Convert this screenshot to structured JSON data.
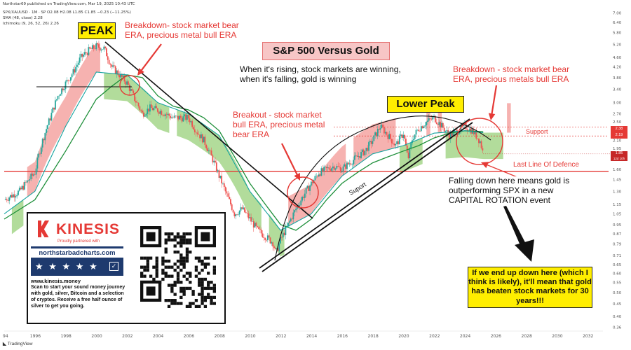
{
  "header": {
    "published_by": "Northstar69 published on TradingView.com, Mar 19, 2025 10:43 UTC",
    "symbol_line": "SPX/XAUUSD · 1M · SP  O2.08 H2.08 L1.85 C1.85 −0.23 (−11.25%)",
    "sma_line": "SMA (48, close)  2.28",
    "ichimoku_line": "Ichimoku (9, 26, 52, 26)  2.26"
  },
  "colors": {
    "price_up": "#26a69a",
    "price_down": "#ef5350",
    "sma": "#1e8f3a",
    "kijun": "#16a3a0",
    "cloud_green": "#a5d68a",
    "cloud_red": "#f4a5a2",
    "annotation_red": "#e53935",
    "highlight_yellow": "#ffee00"
  },
  "annotations": {
    "title": "S&P 500 Versus Gold",
    "peak": "PEAK",
    "lower_peak": "Lower Peak",
    "breakdown1": "Breakdown- stock market bear ERA, precious metal bull ERA",
    "rising_note": "When it's rising, stock markets are winning, when it's falling, gold is winning",
    "breakout": "Breakout - stock market bull ERA, precious metal bear ERA",
    "breakdown2": "Breakdown - stock market bear ERA, precious metals bull ERA",
    "support_label": "Support",
    "support_line_label": "Suport",
    "last_line": "Last Line Of Defence",
    "falling_note": "Falling down here means gold is outperforming SPX in a new CAPITAL ROTATION event",
    "end_note": "If we end up down here (which I think is likely), it'll mean that gold has beaten stock markets for 30 years!!!"
  },
  "ad": {
    "brand": "KINESIS",
    "partner": "Proudly partnered with",
    "site": "northstarbadcharts.com",
    "stars": "★ ★ ★ ★ ★",
    "url": "www.kinesis.money",
    "body": "Scan to start your sound money journey with gold, silver, Bitcoin and a selection of cryptos. Receive a free half ounce of silver to get you going."
  },
  "price_labels": {
    "p1": "2.38",
    "p2": "2.19",
    "p3": "1.85",
    "p3_sub": "12d 10h"
  },
  "footer": {
    "tv": "TradingView"
  },
  "chart_data": {
    "type": "line",
    "title": "S&P 500 Versus Gold",
    "y_scale": "log",
    "ylim": [
      0.35,
      7.2
    ],
    "xlim": [
      1994,
      2033
    ],
    "y_ticks": [
      7.0,
      6.4,
      5.8,
      5.2,
      4.6,
      4.2,
      3.8,
      3.4,
      3.0,
      2.7,
      2.5,
      2.3,
      2.1,
      1.95,
      1.8,
      1.6,
      1.45,
      1.3,
      1.15,
      1.05,
      0.95,
      0.87,
      0.79,
      0.71,
      0.65,
      0.6,
      0.55,
      0.5,
      0.45,
      0.4,
      0.36
    ],
    "x_ticks": [
      "94",
      "1996",
      "1998",
      "2000",
      "2002",
      "2004",
      "2006",
      "2008",
      "2010",
      "2012",
      "2014",
      "2016",
      "2018",
      "2020",
      "2022",
      "2024",
      "2026",
      "2028",
      "2030",
      "2032"
    ],
    "series": [
      {
        "type": "price",
        "x": [
          1994.0,
          1995.0,
          1996.0,
          1996.5,
          1997.0,
          1997.5,
          1998.0,
          1998.5,
          1999.0,
          1999.5,
          2000.0,
          2000.5,
          2001.0,
          2001.5,
          2002.0,
          2002.5,
          2003.0,
          2003.5,
          2004.0,
          2005.0,
          2006.0,
          2006.5,
          2007.0,
          2007.5,
          2008.0,
          2008.5,
          2009.0,
          2009.5,
          2010.0,
          2010.5,
          2011.0,
          2011.5,
          2011.7,
          2012.0,
          2012.5,
          2013.0,
          2013.5,
          2014.0,
          2014.5,
          2015.0,
          2015.5,
          2016.0,
          2016.5,
          2017.0,
          2017.5,
          2018.0,
          2018.5,
          2019.0,
          2019.5,
          2020.0,
          2020.3,
          2020.6,
          2021.0,
          2021.5,
          2022.0,
          2022.5,
          2023.0,
          2023.5,
          2024.0,
          2024.5,
          2025.0,
          2025.2
        ],
        "y": [
          1.2,
          1.3,
          1.55,
          2.1,
          2.6,
          3.2,
          3.6,
          4.0,
          4.6,
          4.9,
          5.1,
          5.0,
          4.2,
          3.9,
          3.6,
          3.1,
          2.7,
          2.85,
          2.8,
          2.6,
          2.6,
          2.3,
          2.1,
          1.8,
          1.5,
          1.25,
          1.05,
          1.1,
          1.0,
          0.9,
          0.85,
          0.8,
          0.72,
          0.82,
          0.95,
          1.1,
          1.25,
          1.4,
          1.55,
          1.6,
          1.65,
          1.6,
          1.7,
          1.8,
          1.9,
          2.1,
          2.4,
          2.2,
          2.0,
          2.25,
          1.75,
          2.15,
          2.35,
          2.5,
          2.6,
          2.4,
          2.2,
          2.3,
          2.4,
          2.3,
          2.08,
          1.85
        ]
      },
      {
        "name": "SMA (48, close)",
        "x": [
          1994.0,
          1996.0,
          1998.0,
          2000.0,
          2001.0,
          2002.0,
          2003.0,
          2004.0,
          2005.0,
          2006.0,
          2007.0,
          2008.0,
          2009.0,
          2010.0,
          2011.0,
          2012.0,
          2013.0,
          2014.0,
          2015.0,
          2016.0,
          2017.0,
          2018.0,
          2019.0,
          2020.0,
          2021.0,
          2022.0,
          2023.0,
          2024.0,
          2025.2
        ],
        "y": [
          1.0,
          1.2,
          1.9,
          3.1,
          3.5,
          3.9,
          3.8,
          3.2,
          2.9,
          2.8,
          2.6,
          2.3,
          1.8,
          1.4,
          1.15,
          0.95,
          0.9,
          1.0,
          1.2,
          1.4,
          1.55,
          1.7,
          1.8,
          1.9,
          2.0,
          2.15,
          2.25,
          2.3,
          2.28
        ]
      },
      {
        "name": "Ichimoku (9, 26, 52, 26)",
        "x": [
          1994.0,
          1996.0,
          1998.0,
          2000.0,
          2002.0,
          2004.0,
          2006.0,
          2008.0,
          2010.0,
          2012.0,
          2014.0,
          2016.0,
          2018.0,
          2020.0,
          2022.0,
          2024.0,
          2025.2
        ],
        "y": [
          1.05,
          1.3,
          2.4,
          4.0,
          3.9,
          3.0,
          2.7,
          2.2,
          1.3,
          0.9,
          1.05,
          1.5,
          1.85,
          2.0,
          2.25,
          2.3,
          2.26
        ]
      }
    ],
    "horizontal_lines": [
      {
        "label": "Last Line Of Defence",
        "y": 1.57
      },
      {
        "label": "Support",
        "y": 2.19
      },
      {
        "y": 2.38
      }
    ],
    "last_price": 1.85
  }
}
